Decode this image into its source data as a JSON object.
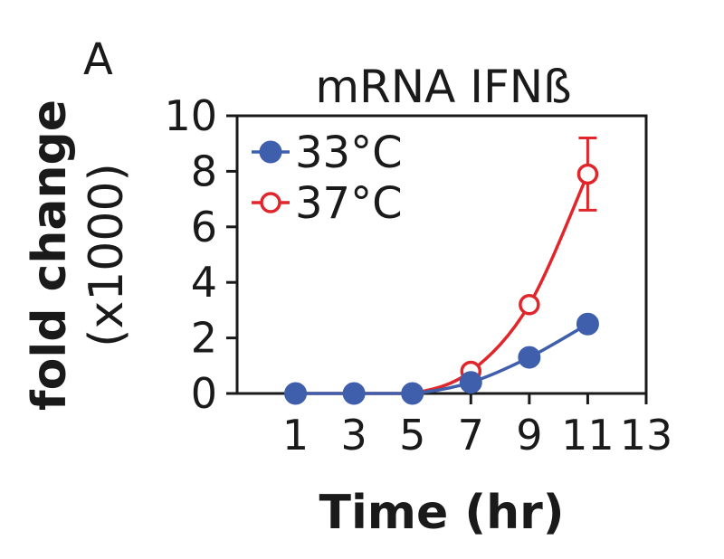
{
  "panel_label": "A",
  "chart_data": {
    "type": "line",
    "title": "mRNA IFNß",
    "xlabel": "Time (hr)",
    "ylabel_line1": "fold change",
    "ylabel_line2": "(x1000)",
    "xlim": [
      -1,
      13
    ],
    "ylim": [
      0,
      10
    ],
    "xticks": [
      1,
      3,
      5,
      7,
      9,
      11,
      13
    ],
    "yticks": [
      0,
      2,
      4,
      6,
      8,
      10
    ],
    "grid": false,
    "legend_position": "top-left",
    "series": [
      {
        "name": "33°C",
        "color": "#3f5fad",
        "marker": "filled-circle",
        "x": [
          1,
          3,
          5,
          7,
          9,
          11
        ],
        "y": [
          0,
          0,
          0,
          0.4,
          1.3,
          2.5
        ]
      },
      {
        "name": "37°C",
        "color": "#e0262b",
        "marker": "open-circle",
        "x": [
          1,
          3,
          5,
          7,
          9,
          11
        ],
        "y": [
          0,
          0,
          0,
          0.8,
          3.2,
          7.9
        ],
        "error": [
          0,
          0,
          0,
          0,
          0,
          1.3
        ]
      }
    ]
  }
}
